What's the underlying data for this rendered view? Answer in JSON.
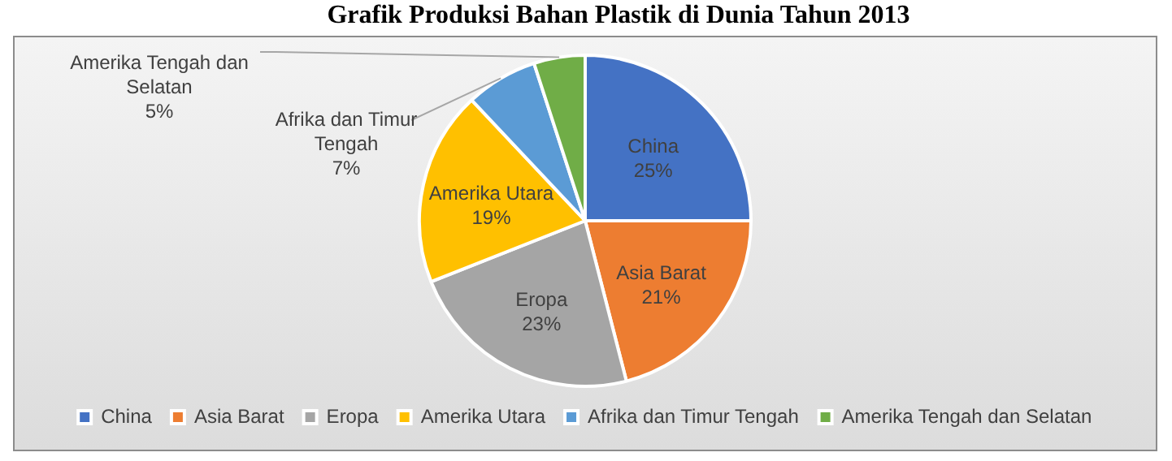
{
  "chart_data": {
    "type": "pie",
    "title": "Grafik Produksi Bahan Plastik di Dunia Tahun 2013",
    "categories": [
      "China",
      "Asia Barat",
      "Eropa",
      "Amerika Utara",
      "Afrika dan Timur Tengah",
      "Amerika Tengah dan Selatan"
    ],
    "values": [
      25,
      21,
      23,
      19,
      7,
      5
    ],
    "colors": [
      "#4472c4",
      "#ed7d31",
      "#a5a5a5",
      "#ffc000",
      "#5b9bd5",
      "#70ad47"
    ],
    "value_labels": [
      "25%",
      "21%",
      "23%",
      "19%",
      "7%",
      "5%"
    ],
    "legend": "bottom"
  }
}
